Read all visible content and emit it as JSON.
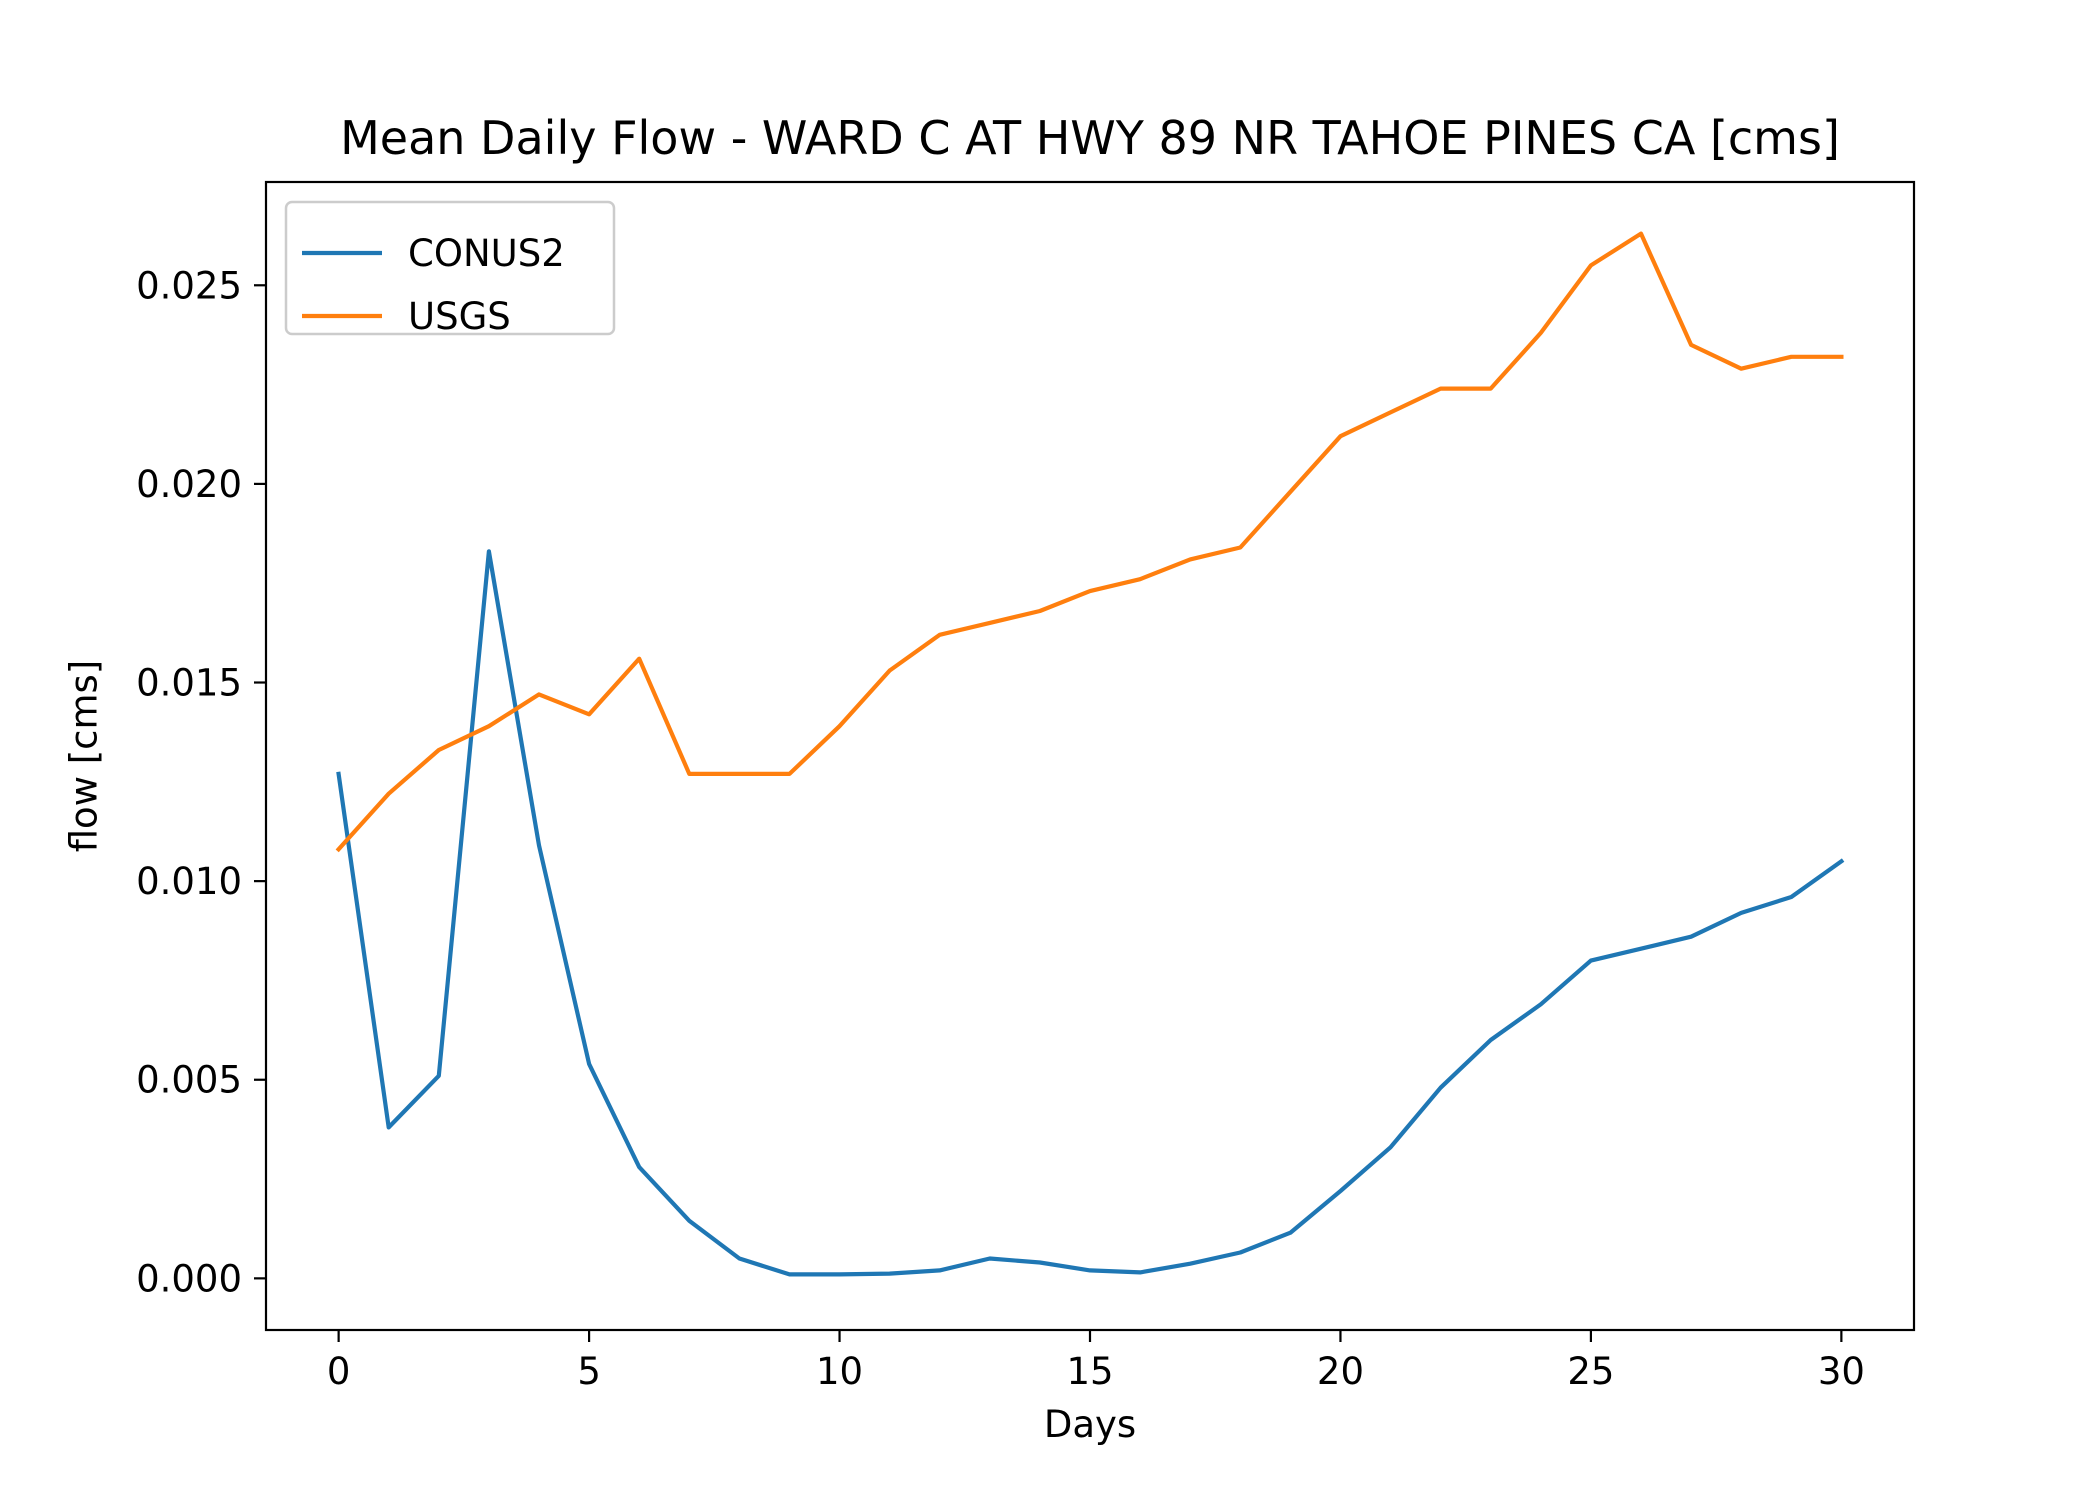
{
  "chart_data": {
    "type": "line",
    "title": "Mean Daily Flow - WARD C AT HWY 89 NR TAHOE PINES CA [cms]",
    "xlabel": "Days",
    "ylabel": "flow [cms]",
    "xlim": [
      -1.45,
      31.45
    ],
    "ylim": [
      -0.0013,
      0.0276
    ],
    "xticks": [
      0,
      5,
      10,
      15,
      20,
      25,
      30
    ],
    "xtick_labels": [
      "0",
      "5",
      "10",
      "15",
      "20",
      "25",
      "30"
    ],
    "yticks": [
      0.0,
      0.005,
      0.01,
      0.015,
      0.02,
      0.025
    ],
    "ytick_labels": [
      "0.000",
      "0.005",
      "0.010",
      "0.015",
      "0.020",
      "0.025"
    ],
    "grid": false,
    "legend_position": "upper-left",
    "x": [
      0,
      1,
      2,
      3,
      4,
      5,
      6,
      7,
      8,
      9,
      10,
      11,
      12,
      13,
      14,
      15,
      16,
      17,
      18,
      19,
      20,
      21,
      22,
      23,
      24,
      25,
      26,
      27,
      28,
      29,
      30
    ],
    "series": [
      {
        "name": "CONUS2",
        "color": "#1f77b4",
        "values": [
          0.0127,
          0.0038,
          0.0051,
          0.0183,
          0.0109,
          0.0054,
          0.0028,
          0.00145,
          0.0005,
          0.0001,
          0.0001,
          0.00012,
          0.0002,
          0.0005,
          0.0004,
          0.0002,
          0.00015,
          0.00037,
          0.00065,
          0.00115,
          0.0022,
          0.0033,
          0.0048,
          0.006,
          0.0069,
          0.008,
          0.0083,
          0.0086,
          0.0092,
          0.0096,
          0.0105
        ]
      },
      {
        "name": "USGS",
        "color": "#ff7f0e",
        "values": [
          0.0108,
          0.0122,
          0.0133,
          0.0139,
          0.0147,
          0.0142,
          0.0156,
          0.0127,
          0.0127,
          0.0127,
          0.0139,
          0.0153,
          0.0162,
          0.0165,
          0.0168,
          0.0173,
          0.0176,
          0.0181,
          0.0184,
          0.0198,
          0.0212,
          0.0218,
          0.0224,
          0.0224,
          0.0238,
          0.0255,
          0.0263,
          0.0235,
          0.0229,
          0.0232,
          0.0232
        ]
      }
    ]
  }
}
